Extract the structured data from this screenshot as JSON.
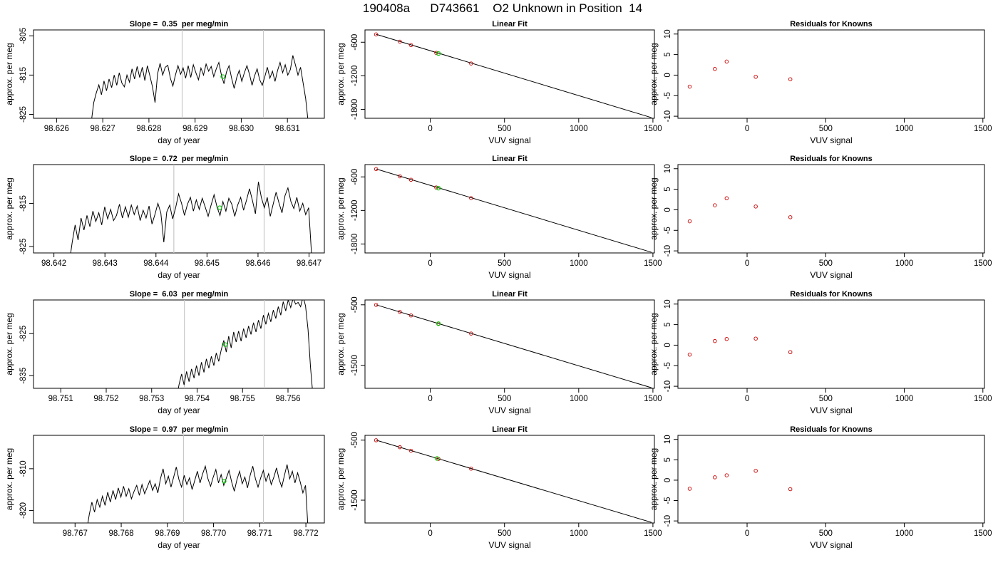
{
  "figure": {
    "title": "190408a      D743661    O2 Unknown in Position  14"
  },
  "chart_data": [
    {
      "type": "line",
      "row": 0,
      "col": 0,
      "title": "Slope =  0.35  per meg/min",
      "xlabel": "day of year",
      "ylabel": "approx. per meg",
      "xlim": [
        98.6255,
        98.6318
      ],
      "ylim": [
        -826,
        -803.5
      ],
      "xticks": [
        98.626,
        98.627,
        98.628,
        98.629,
        98.63,
        98.631
      ],
      "xtick_labels": [
        "98.626",
        "98.627",
        "98.628",
        "98.629",
        "98.630",
        "98.631"
      ],
      "yticks": [
        -825,
        -815,
        -805
      ],
      "ytick_labels": [
        "-825",
        "-815",
        "-805"
      ],
      "series": [
        {
          "color": "#000000",
          "x_start": 98.62675,
          "x_end": 98.63145,
          "y": [
            -827,
            -822,
            -819.5,
            -817.5,
            -820,
            -816.5,
            -819,
            -816,
            -818.2,
            -815,
            -817.6,
            -814.4,
            -817,
            -818,
            -815,
            -816.8,
            -813.4,
            -816,
            -812.8,
            -815.6,
            -813,
            -816.4,
            -812.6,
            -815.2,
            -818,
            -822,
            -814.6,
            -812,
            -815,
            -813,
            -812.5,
            -815.8,
            -817.8,
            -815,
            -812.6,
            -814.8,
            -813.2,
            -815.8,
            -812.6,
            -815.6,
            -812.4,
            -814.4,
            -816.2,
            -813.2,
            -815,
            -812.2,
            -814,
            -812.8,
            -815.4,
            -813.4,
            -811.8,
            -815,
            -817.2,
            -814.2,
            -812.6,
            -815.8,
            -818.4,
            -815.6,
            -813.8,
            -816.6,
            -814.4,
            -812.6,
            -814.8,
            -817.6,
            -815.2,
            -813.4,
            -816.2,
            -817.6,
            -815.4,
            -813,
            -815.8,
            -814,
            -816.6,
            -813.8,
            -811.8,
            -814.4,
            -812.4,
            -815,
            -813.6,
            -810,
            -812.4,
            -815,
            -813,
            -817,
            -821,
            -827
          ]
        }
      ],
      "vlines": [
        98.62872,
        98.63048
      ],
      "highlight": {
        "x": 98.6296,
        "y": -815.4,
        "color": "#00cc00"
      }
    },
    {
      "type": "scatter",
      "row": 0,
      "col": 1,
      "title": "Linear Fit",
      "xlabel": "VUV signal",
      "ylabel": "approx. per meg",
      "xlim": [
        -440,
        1510
      ],
      "ylim": [
        -1960,
        -380
      ],
      "xticks": [
        0,
        500,
        1000,
        1500
      ],
      "xtick_labels": [
        "0",
        "500",
        "1000",
        "1500"
      ],
      "yticks": [
        -600,
        -1200,
        -1800
      ],
      "ytick_labels": [
        "-600",
        "-1200",
        "-1800"
      ],
      "fit_line": {
        "x": [
          -365,
          1490
        ],
        "y": [
          -458,
          -1948
        ]
      },
      "points": {
        "color": "#cc0000",
        "x": [
          -365,
          -205,
          -130,
          40,
          275
        ],
        "y": [
          -460,
          -590,
          -651,
          -790,
          -980
        ]
      },
      "highlight": {
        "x": 55,
        "y": -802,
        "color": "#00cc00"
      }
    },
    {
      "type": "scatter",
      "row": 0,
      "col": 2,
      "title": "Residuals for Knowns",
      "xlabel": "VUV signal",
      "ylabel": "approx. per meg",
      "xlim": [
        -440,
        1510
      ],
      "ylim": [
        -10.5,
        11
      ],
      "xticks": [
        0,
        500,
        1000,
        1500
      ],
      "xtick_labels": [
        "0",
        "500",
        "1000",
        "1500"
      ],
      "yticks": [
        -10,
        -5,
        0,
        5,
        10
      ],
      "ytick_labels": [
        "-10",
        "-5",
        "0",
        "5",
        "10"
      ],
      "points": {
        "color": "#cc0000",
        "x": [
          -365,
          -205,
          -130,
          55,
          275
        ],
        "y": [
          -2.8,
          1.5,
          3.3,
          -0.4,
          -1.0
        ]
      }
    },
    {
      "type": "line",
      "row": 1,
      "col": 0,
      "title": "Slope =  0.72  per meg/min",
      "xlabel": "day of year",
      "ylabel": "approx. per meg",
      "xlim": [
        98.6416,
        98.6473
      ],
      "ylim": [
        -826.5,
        -806
      ],
      "xticks": [
        98.642,
        98.643,
        98.644,
        98.645,
        98.646,
        98.647
      ],
      "xtick_labels": [
        "98.642",
        "98.643",
        "98.644",
        "98.645",
        "98.646",
        "98.647"
      ],
      "yticks": [
        -825,
        -815
      ],
      "ytick_labels": [
        "-825",
        "-815"
      ],
      "series": [
        {
          "color": "#000000",
          "x_start": 98.6423,
          "x_end": 98.64705,
          "y": [
            -829,
            -824,
            -820,
            -823.5,
            -818.4,
            -821.2,
            -817.8,
            -820.4,
            -816.8,
            -819.2,
            -817.2,
            -820,
            -815.8,
            -818.6,
            -816.4,
            -819,
            -817.8,
            -815.2,
            -818.4,
            -815.8,
            -818.2,
            -815.4,
            -817.6,
            -815.6,
            -819,
            -816.6,
            -818.4,
            -815.6,
            -819.8,
            -817.6,
            -815,
            -817.2,
            -824,
            -817,
            -815.4,
            -818.6,
            -816,
            -812.8,
            -815,
            -817.8,
            -815.2,
            -813.6,
            -816.8,
            -814.2,
            -816.4,
            -813.8,
            -815.8,
            -818,
            -815.4,
            -813,
            -815.8,
            -817.8,
            -814.6,
            -816.8,
            -813.8,
            -815.2,
            -818,
            -815.4,
            -813.6,
            -816.6,
            -814.2,
            -811.6,
            -814.4,
            -817.4,
            -810,
            -813.6,
            -816,
            -813.6,
            -818,
            -815.2,
            -812.4,
            -815,
            -817.2,
            -813.2,
            -811.4,
            -814.6,
            -816.2,
            -813.6,
            -816.8,
            -815,
            -817.6,
            -816,
            -827
          ]
        }
      ],
      "vlines": [
        98.64435,
        98.64612
      ],
      "highlight": {
        "x": 98.64525,
        "y": -816,
        "color": "#00cc00"
      }
    },
    {
      "type": "scatter",
      "row": 1,
      "col": 1,
      "title": "Linear Fit",
      "xlabel": "VUV signal",
      "ylabel": "approx. per meg",
      "xlim": [
        -440,
        1510
      ],
      "ylim": [
        -1960,
        -380
      ],
      "xticks": [
        0,
        500,
        1000,
        1500
      ],
      "xtick_labels": [
        "0",
        "500",
        "1000",
        "1500"
      ],
      "yticks": [
        -600,
        -1200,
        -1800
      ],
      "ytick_labels": [
        "-600",
        "-1200",
        "-1800"
      ],
      "fit_line": {
        "x": [
          -365,
          1490
        ],
        "y": [
          -458,
          -1948
        ]
      },
      "points": {
        "color": "#cc0000",
        "x": [
          -365,
          -205,
          -130,
          40,
          275
        ],
        "y": [
          -460,
          -590,
          -651,
          -790,
          -980
        ]
      },
      "highlight": {
        "x": 55,
        "y": -802,
        "color": "#00cc00"
      }
    },
    {
      "type": "scatter",
      "row": 1,
      "col": 2,
      "title": "Residuals for Knowns",
      "xlabel": "VUV signal",
      "ylabel": "approx. per meg",
      "xlim": [
        -440,
        1510
      ],
      "ylim": [
        -10.5,
        11
      ],
      "xticks": [
        0,
        500,
        1000,
        1500
      ],
      "xtick_labels": [
        "0",
        "500",
        "1000",
        "1500"
      ],
      "yticks": [
        -10,
        -5,
        0,
        5,
        10
      ],
      "ytick_labels": [
        "-10",
        "-5",
        "0",
        "5",
        "10"
      ],
      "points": {
        "color": "#cc0000",
        "x": [
          -365,
          -205,
          -130,
          55,
          275
        ],
        "y": [
          -2.8,
          1.1,
          2.8,
          0.8,
          -1.8
        ]
      }
    },
    {
      "type": "line",
      "row": 2,
      "col": 0,
      "title": "Slope =  6.03  per meg/min",
      "xlabel": "day of year",
      "ylabel": "approx. per meg",
      "xlim": [
        98.7504,
        98.7568
      ],
      "ylim": [
        -838,
        -817
      ],
      "xticks": [
        98.751,
        98.752,
        98.753,
        98.754,
        98.755,
        98.756
      ],
      "xtick_labels": [
        "98.751",
        "98.752",
        "98.753",
        "98.754",
        "98.755",
        "98.756"
      ],
      "yticks": [
        -835,
        -825
      ],
      "ytick_labels": [
        "-835",
        "-825"
      ],
      "series": [
        {
          "color": "#000000",
          "x_start": 98.75355,
          "x_end": 98.75655,
          "y": [
            -840,
            -837,
            -834.6,
            -837.2,
            -834,
            -836.4,
            -833.4,
            -835.6,
            -832.6,
            -835,
            -831.8,
            -834.2,
            -831,
            -833.2,
            -830.4,
            -832.6,
            -829.6,
            -831.6,
            -828.8,
            -826.6,
            -829.4,
            -825.6,
            -828.4,
            -824.6,
            -827,
            -824.4,
            -826.8,
            -823.8,
            -826,
            -823.2,
            -825.2,
            -822.4,
            -824.6,
            -821.8,
            -823.8,
            -820.6,
            -822.8,
            -820.2,
            -822.2,
            -819.4,
            -821.4,
            -818.6,
            -820.6,
            -817.4,
            -819.6,
            -817,
            -818.8,
            -816.6,
            -818,
            -817.6,
            -818.6,
            -816.2,
            -818.4,
            -824,
            -833,
            -840
          ]
        }
      ],
      "vlines": [
        98.75372,
        98.75548
      ],
      "highlight": {
        "x": 98.75462,
        "y": -827.6,
        "color": "#00cc00"
      }
    },
    {
      "type": "scatter",
      "row": 2,
      "col": 1,
      "title": "Linear Fit",
      "xlabel": "VUV signal",
      "ylabel": "approx. per meg",
      "xlim": [
        -440,
        1510
      ],
      "ylim": [
        -1880,
        -420
      ],
      "xticks": [
        0,
        500,
        1000,
        1500
      ],
      "xtick_labels": [
        "0",
        "500",
        "1000",
        "1500"
      ],
      "yticks": [
        -500,
        -1500
      ],
      "ytick_labels": [
        "-500",
        "-1500"
      ],
      "fit_line": {
        "x": [
          -365,
          1490
        ],
        "y": [
          -500,
          -1870
        ]
      },
      "points": {
        "color": "#cc0000",
        "x": [
          -365,
          -205,
          -130,
          55,
          275
        ],
        "y": [
          -502,
          -618,
          -676,
          -812,
          -975
        ]
      },
      "highlight": {
        "x": 55,
        "y": -812,
        "color": "#00cc00"
      }
    },
    {
      "type": "scatter",
      "row": 2,
      "col": 2,
      "title": "Residuals for Knowns",
      "xlabel": "VUV signal",
      "ylabel": "approx. per meg",
      "xlim": [
        -440,
        1510
      ],
      "ylim": [
        -10.5,
        11
      ],
      "xticks": [
        0,
        500,
        1000,
        1500
      ],
      "xtick_labels": [
        "0",
        "500",
        "1000",
        "1500"
      ],
      "yticks": [
        -10,
        -5,
        0,
        5,
        10
      ],
      "ytick_labels": [
        "-10",
        "-5",
        "0",
        "5",
        "10"
      ],
      "points": {
        "color": "#cc0000",
        "x": [
          -365,
          -205,
          -130,
          55,
          275
        ],
        "y": [
          -2.3,
          1.0,
          1.5,
          1.6,
          -1.7
        ]
      }
    },
    {
      "type": "line",
      "row": 3,
      "col": 0,
      "title": "Slope =  0.97  per meg/min",
      "xlabel": "day of year",
      "ylabel": "approx. per meg",
      "xlim": [
        98.7661,
        98.7724
      ],
      "ylim": [
        -823,
        -802
      ],
      "xticks": [
        98.767,
        98.768,
        98.769,
        98.77,
        98.771,
        98.772
      ],
      "xtick_labels": [
        "98.767",
        "98.768",
        "98.769",
        "98.770",
        "98.771",
        "98.772"
      ],
      "yticks": [
        -820,
        -810
      ],
      "ytick_labels": [
        "-820",
        "-810"
      ],
      "series": [
        {
          "color": "#000000",
          "x_start": 98.76725,
          "x_end": 98.77205,
          "y": [
            -825,
            -821,
            -818,
            -820.4,
            -817.4,
            -819.2,
            -816.6,
            -818.8,
            -815.6,
            -818,
            -815.2,
            -817.4,
            -814.6,
            -816.8,
            -814.2,
            -816.6,
            -814.8,
            -817.2,
            -815.4,
            -814,
            -816.4,
            -813.8,
            -816,
            -814.4,
            -812.8,
            -815.2,
            -813.6,
            -815.8,
            -812.4,
            -810,
            -813.6,
            -811.8,
            -814.4,
            -812,
            -809.6,
            -812.6,
            -814.4,
            -811.6,
            -813.8,
            -812.2,
            -815,
            -812.8,
            -810.6,
            -813.4,
            -811.2,
            -809.4,
            -812.4,
            -814.2,
            -812,
            -810.2,
            -813.4,
            -811.4,
            -814,
            -812.2,
            -810.4,
            -813.2,
            -815.4,
            -812.6,
            -810.6,
            -813.6,
            -812,
            -814.6,
            -811.6,
            -809.4,
            -812.4,
            -814.4,
            -812.2,
            -810.4,
            -813,
            -811.2,
            -813.8,
            -812,
            -809.8,
            -812.6,
            -814.4,
            -811.6,
            -809,
            -812.4,
            -810.6,
            -813.4,
            -811,
            -813.2,
            -815.8,
            -814,
            -825
          ]
        }
      ],
      "vlines": [
        98.76935,
        98.77108
      ],
      "highlight": {
        "x": 98.77023,
        "y": -813,
        "color": "#00cc00"
      }
    },
    {
      "type": "scatter",
      "row": 3,
      "col": 1,
      "title": "Linear Fit",
      "xlabel": "VUV signal",
      "ylabel": "approx. per meg",
      "xlim": [
        -440,
        1510
      ],
      "ylim": [
        -1880,
        -420
      ],
      "xticks": [
        0,
        500,
        1000,
        1500
      ],
      "xtick_labels": [
        "0",
        "500",
        "1000",
        "1500"
      ],
      "yticks": [
        -500,
        -1500
      ],
      "ytick_labels": [
        "-500",
        "-1500"
      ],
      "fit_line": {
        "x": [
          -365,
          1490
        ],
        "y": [
          -500,
          -1870
        ]
      },
      "points": {
        "color": "#cc0000",
        "x": [
          -365,
          -205,
          -130,
          55,
          275
        ],
        "y": [
          -502,
          -618,
          -676,
          -812,
          -975
        ]
      },
      "highlight": {
        "x": 45,
        "y": -805,
        "color": "#00cc00"
      }
    },
    {
      "type": "scatter",
      "row": 3,
      "col": 2,
      "title": "Residuals for Knowns",
      "xlabel": "VUV signal",
      "ylabel": "approx. per meg",
      "xlim": [
        -440,
        1510
      ],
      "ylim": [
        -10.5,
        11
      ],
      "xticks": [
        0,
        500,
        1000,
        1500
      ],
      "xtick_labels": [
        "0",
        "500",
        "1000",
        "1500"
      ],
      "yticks": [
        -10,
        -5,
        0,
        5,
        10
      ],
      "ytick_labels": [
        "-10",
        "-5",
        "0",
        "5",
        "10"
      ],
      "points": {
        "color": "#cc0000",
        "x": [
          -365,
          -205,
          -130,
          55,
          275
        ],
        "y": [
          -2.1,
          0.7,
          1.2,
          2.3,
          -2.2
        ]
      }
    }
  ]
}
